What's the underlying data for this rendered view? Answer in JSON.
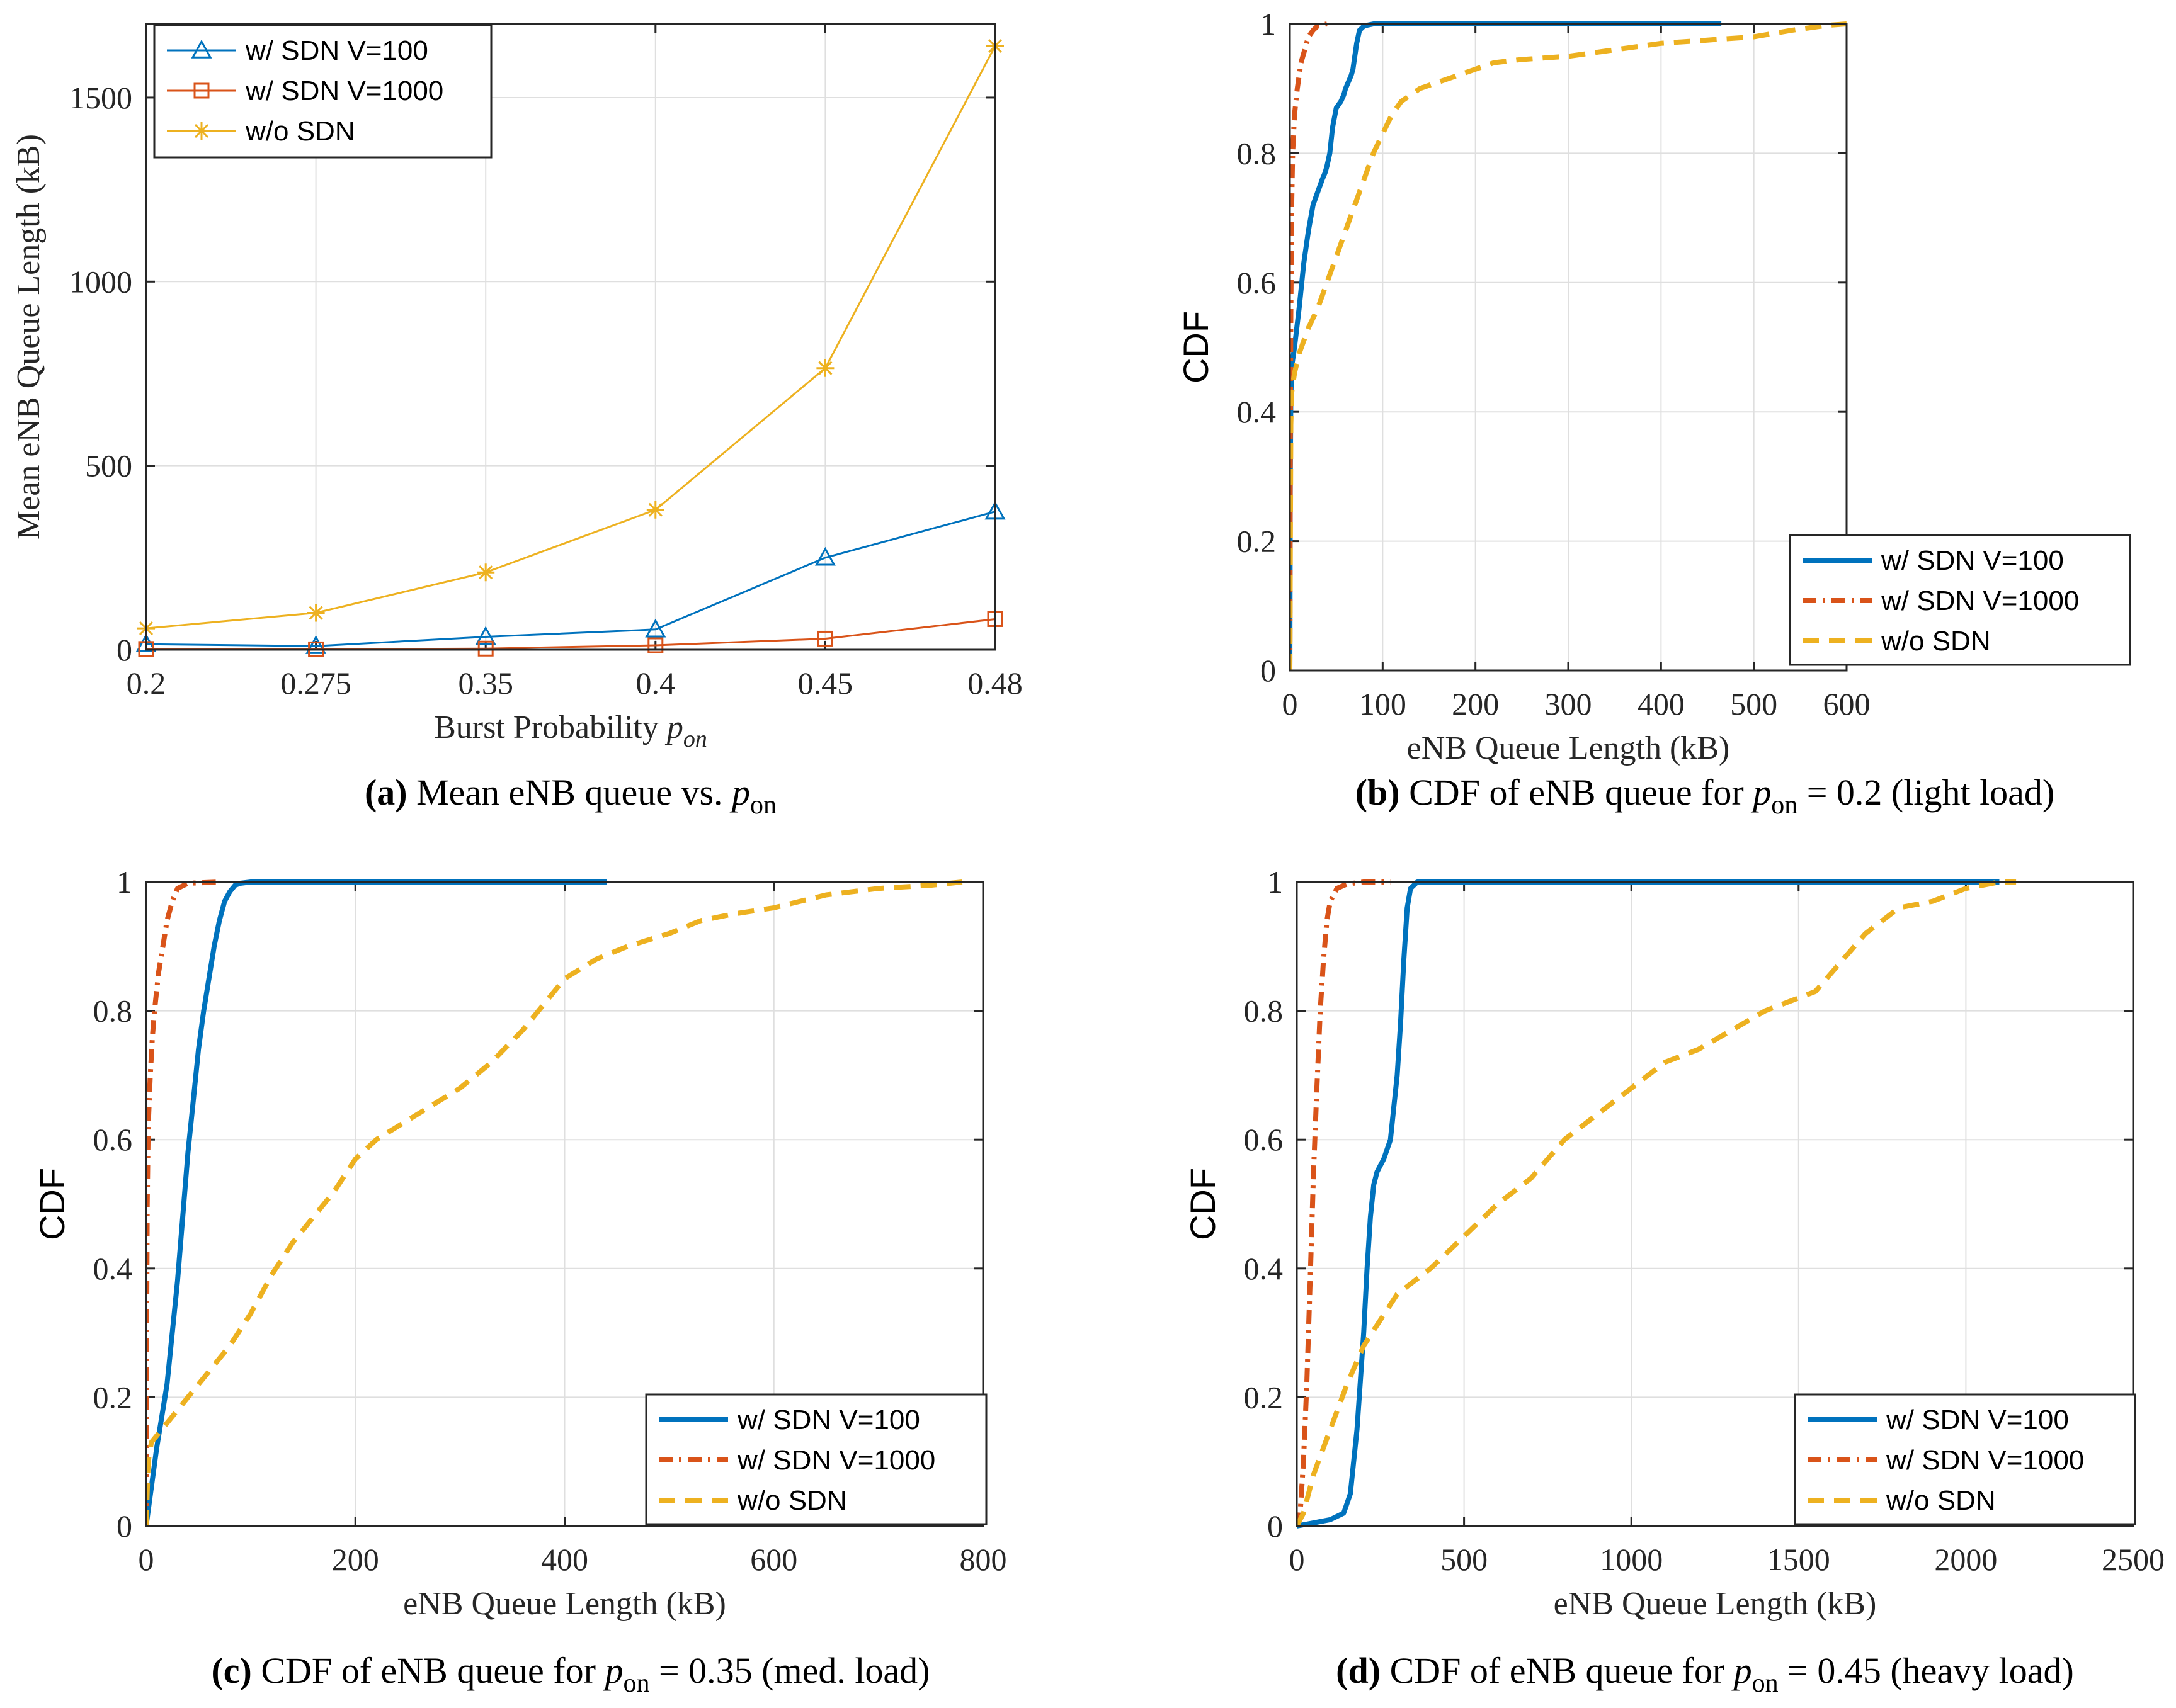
{
  "colors": {
    "blue": "#0072BD",
    "orange": "#D95319",
    "yellow": "#EDB120"
  },
  "chart_data": [
    {
      "id": "a",
      "type": "line",
      "caption": {
        "letter": "(a)",
        "text": " Mean eNB queue vs. ",
        "var": "p",
        "sub": "on"
      },
      "xlabel": {
        "text": "Burst Probability ",
        "var": "p",
        "sub": "on"
      },
      "ylabel": "Mean eNB Queue Length (kB)",
      "categories": [
        "0.2",
        "0.275",
        "0.35",
        "0.4",
        "0.45",
        "0.48"
      ],
      "ylim": [
        0,
        1700
      ],
      "yticks": [
        0,
        500,
        1000,
        1500
      ],
      "grid": true,
      "legend_position": "top-left",
      "series": [
        {
          "name": "w/ SDN V=100",
          "color": "#0072BD",
          "marker": "triangle",
          "values": [
            15,
            10,
            35,
            55,
            250,
            375
          ]
        },
        {
          "name": "w/ SDN V=1000",
          "color": "#D95319",
          "marker": "square",
          "values": [
            2,
            1,
            3,
            12,
            30,
            83
          ]
        },
        {
          "name": "w/o SDN",
          "color": "#EDB120",
          "marker": "asterisk",
          "values": [
            58,
            100,
            210,
            380,
            765,
            1640
          ]
        }
      ]
    },
    {
      "id": "b",
      "type": "line",
      "caption": {
        "letter": "(b)",
        "text": " CDF of eNB queue for ",
        "var": "p",
        "sub": "on",
        "rest": " = 0.2 (light load)"
      },
      "xlabel": {
        "text": "eNB Queue Length (kB)"
      },
      "ylabel": "CDF",
      "xlim": [
        0,
        600
      ],
      "xticks": [
        0,
        100,
        200,
        300,
        400,
        500,
        600
      ],
      "ylim": [
        0,
        1
      ],
      "yticks": [
        0,
        0.2,
        0.4,
        0.6,
        0.8,
        1
      ],
      "grid": true,
      "legend_position": "bottom-right",
      "series": [
        {
          "name": "w/ SDN V=100",
          "color": "#0072BD",
          "style": "solid",
          "x": [
            0,
            0.5,
            1,
            2,
            5,
            10,
            15,
            20,
            25,
            30,
            35,
            38,
            40,
            43,
            46,
            50,
            55,
            58,
            60,
            63,
            66,
            68,
            70,
            72,
            75,
            80,
            90,
            150,
            300,
            465
          ],
          "y": [
            0,
            0.3,
            0.42,
            0.47,
            0.5,
            0.56,
            0.63,
            0.68,
            0.72,
            0.74,
            0.76,
            0.77,
            0.78,
            0.8,
            0.84,
            0.87,
            0.88,
            0.89,
            0.9,
            0.91,
            0.92,
            0.93,
            0.95,
            0.97,
            0.99,
            0.997,
            1,
            1,
            1,
            1
          ]
        },
        {
          "name": "w/ SDN V=1000",
          "color": "#D95319",
          "style": "dashdot",
          "x": [
            0,
            0.5,
            1,
            2,
            3,
            5,
            8,
            12,
            16,
            20,
            25,
            30,
            40
          ],
          "y": [
            0,
            0.35,
            0.55,
            0.72,
            0.8,
            0.86,
            0.9,
            0.94,
            0.96,
            0.98,
            0.99,
            0.997,
            1
          ]
        },
        {
          "name": "w/o SDN",
          "color": "#EDB120",
          "style": "dashed",
          "x": [
            0,
            1,
            2,
            5,
            10,
            20,
            30,
            40,
            50,
            60,
            70,
            80,
            90,
            100,
            110,
            120,
            140,
            160,
            180,
            200,
            220,
            250,
            300,
            350,
            400,
            450,
            500,
            540,
            580,
            600
          ],
          "y": [
            0,
            0.38,
            0.43,
            0.46,
            0.49,
            0.53,
            0.56,
            0.6,
            0.64,
            0.68,
            0.72,
            0.76,
            0.8,
            0.83,
            0.86,
            0.88,
            0.9,
            0.91,
            0.92,
            0.93,
            0.94,
            0.945,
            0.95,
            0.96,
            0.97,
            0.975,
            0.98,
            0.99,
            0.998,
            1
          ]
        }
      ]
    },
    {
      "id": "c",
      "type": "line",
      "caption": {
        "letter": "(c)",
        "text": " CDF of eNB queue for ",
        "var": "p",
        "sub": "on",
        "rest": " = 0.35 (med. load)"
      },
      "xlabel": {
        "text": "eNB Queue Length (kB)"
      },
      "ylabel": "CDF",
      "xlim": [
        0,
        800
      ],
      "xticks": [
        0,
        200,
        400,
        600,
        800
      ],
      "ylim": [
        0,
        1
      ],
      "yticks": [
        0,
        0.2,
        0.4,
        0.6,
        0.8,
        1
      ],
      "grid": true,
      "legend_position": "bottom-right",
      "series": [
        {
          "name": "w/ SDN V=100",
          "color": "#0072BD",
          "style": "solid",
          "x": [
            0,
            5,
            10,
            15,
            20,
            25,
            30,
            35,
            40,
            45,
            50,
            55,
            60,
            65,
            70,
            75,
            80,
            85,
            90,
            100,
            150,
            250,
            440
          ],
          "y": [
            0,
            0.06,
            0.12,
            0.17,
            0.22,
            0.3,
            0.38,
            0.48,
            0.58,
            0.66,
            0.74,
            0.8,
            0.85,
            0.9,
            0.94,
            0.97,
            0.985,
            0.995,
            0.998,
            1,
            1,
            1,
            1
          ]
        },
        {
          "name": "w/ SDN V=1000",
          "color": "#D95319",
          "style": "dashdot",
          "x": [
            0,
            0.5,
            1,
            2,
            4,
            6,
            8,
            12,
            16,
            20,
            25,
            30,
            40,
            70
          ],
          "y": [
            0,
            0.3,
            0.5,
            0.62,
            0.7,
            0.76,
            0.8,
            0.86,
            0.9,
            0.94,
            0.97,
            0.99,
            0.998,
            1
          ]
        },
        {
          "name": "w/o SDN",
          "color": "#EDB120",
          "style": "dashed",
          "x": [
            0,
            2,
            5,
            10,
            20,
            30,
            40,
            60,
            80,
            100,
            120,
            140,
            160,
            180,
            200,
            220,
            250,
            280,
            300,
            330,
            360,
            380,
            400,
            430,
            460,
            500,
            530,
            560,
            600,
            650,
            700,
            750,
            780
          ],
          "y": [
            0,
            0.1,
            0.13,
            0.14,
            0.16,
            0.18,
            0.2,
            0.24,
            0.28,
            0.33,
            0.39,
            0.44,
            0.48,
            0.52,
            0.57,
            0.6,
            0.63,
            0.66,
            0.68,
            0.72,
            0.77,
            0.81,
            0.85,
            0.88,
            0.9,
            0.92,
            0.94,
            0.95,
            0.96,
            0.98,
            0.99,
            0.995,
            1
          ]
        }
      ]
    },
    {
      "id": "d",
      "type": "line",
      "caption": {
        "letter": "(d)",
        "text": " CDF of eNB queue for ",
        "var": "p",
        "sub": "on",
        "rest": " = 0.45 (heavy load)"
      },
      "xlabel": {
        "text": "eNB Queue Length (kB)"
      },
      "ylabel": "CDF",
      "xlim": [
        0,
        2500
      ],
      "xticks": [
        0,
        500,
        1000,
        1500,
        2000,
        2500
      ],
      "ylim": [
        0,
        1
      ],
      "yticks": [
        0,
        0.2,
        0.4,
        0.6,
        0.8,
        1
      ],
      "grid": true,
      "legend_position": "bottom-right",
      "series": [
        {
          "name": "w/ SDN V=100",
          "color": "#0072BD",
          "style": "solid",
          "x": [
            0,
            50,
            100,
            140,
            160,
            180,
            200,
            210,
            220,
            230,
            240,
            260,
            280,
            290,
            300,
            310,
            320,
            330,
            340,
            360,
            500,
            1000,
            2100
          ],
          "y": [
            0,
            0.005,
            0.01,
            0.02,
            0.05,
            0.15,
            0.3,
            0.4,
            0.48,
            0.53,
            0.55,
            0.57,
            0.6,
            0.65,
            0.7,
            0.78,
            0.88,
            0.96,
            0.99,
            1,
            1,
            1,
            1
          ]
        },
        {
          "name": "w/ SDN V=1000",
          "color": "#D95319",
          "style": "dashdot",
          "x": [
            0,
            10,
            20,
            30,
            40,
            50,
            60,
            70,
            80,
            90,
            100,
            120,
            150,
            200,
            280
          ],
          "y": [
            0,
            0.02,
            0.1,
            0.22,
            0.38,
            0.55,
            0.68,
            0.8,
            0.88,
            0.94,
            0.97,
            0.99,
            0.997,
            1,
            1
          ]
        },
        {
          "name": "w/o SDN",
          "color": "#EDB120",
          "style": "dashed",
          "x": [
            0,
            20,
            50,
            100,
            150,
            200,
            250,
            300,
            400,
            500,
            600,
            700,
            800,
            900,
            1000,
            1100,
            1200,
            1300,
            1400,
            1500,
            1550,
            1600,
            1650,
            1700,
            1750,
            1800,
            1900,
            2000,
            2100,
            2150
          ],
          "y": [
            0,
            0.02,
            0.08,
            0.15,
            0.22,
            0.28,
            0.32,
            0.36,
            0.4,
            0.45,
            0.5,
            0.54,
            0.6,
            0.64,
            0.68,
            0.72,
            0.74,
            0.77,
            0.8,
            0.82,
            0.83,
            0.86,
            0.89,
            0.92,
            0.94,
            0.96,
            0.97,
            0.99,
            1,
            1
          ]
        }
      ]
    }
  ]
}
